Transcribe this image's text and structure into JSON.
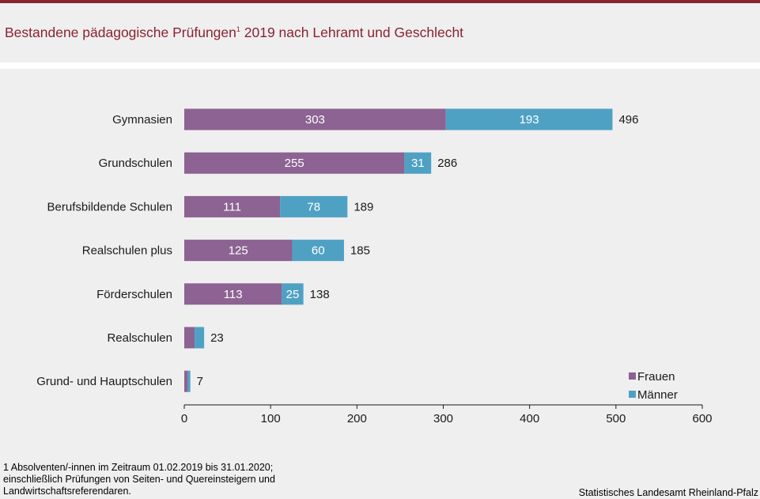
{
  "header": {
    "title": "Bestandene pädagogische Prüfungen",
    "title_sup": "1",
    "title_rest": " 2019 nach Lehramt und Geschlecht"
  },
  "chart_data": {
    "type": "bar",
    "orientation": "horizontal",
    "stacked": true,
    "categories": [
      "Gymnasien",
      "Grundschulen",
      "Berufsbildende Schulen",
      "Realschulen plus",
      "Förderschulen",
      "Realschulen",
      "Grund- und Hauptschulen"
    ],
    "series": [
      {
        "name": "Frauen",
        "color": "#8c6392",
        "values": [
          303,
          255,
          111,
          125,
          113,
          12,
          4
        ],
        "labels": [
          "303",
          "255",
          "111",
          "125",
          "113",
          "",
          ""
        ]
      },
      {
        "name": "Männer",
        "color": "#4fa1c4",
        "values": [
          193,
          31,
          78,
          60,
          25,
          11,
          3
        ],
        "labels": [
          "193",
          "31",
          "78",
          "60",
          "25",
          "",
          ""
        ]
      }
    ],
    "totals": [
      "496",
      "286",
      "189",
      "185",
      "138",
      "23",
      "7"
    ],
    "xlim": [
      0,
      600
    ],
    "xticks": [
      "0",
      "100",
      "200",
      "300",
      "400",
      "500",
      "600"
    ],
    "grid": false,
    "legend_position": "bottom-right"
  },
  "footer": {
    "footnote_lines": [
      "1 Absolventen/-innen  im Zeitraum  01.02.2019  bis 31.01.2020;",
      "einschließlich Prüfungen  von Seiten-  und Quereinsteigern  und",
      "Landwirtschaftsreferendaren."
    ],
    "source": "Statistisches Landesamt Rheinland-Pfalz"
  }
}
